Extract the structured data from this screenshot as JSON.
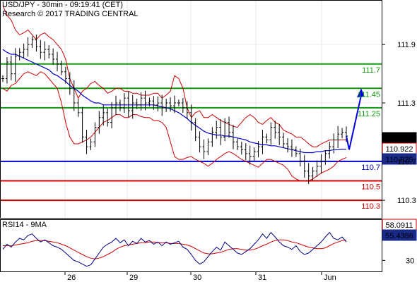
{
  "header": {
    "title": "USD/JPY - 30min - 09:19:41 (CET)",
    "subtitle": "Research © 2017 TRADING CENTRAL"
  },
  "rsi_panel": {
    "label": "RSI14 - 9MA"
  },
  "colors": {
    "resistance": "#119911",
    "pivot": "#0000cc",
    "support": "#cc0000",
    "candles": "#000000",
    "ma": "#0000cc",
    "bollinger": "#cc0000",
    "forecast_arrow": "#0000dd",
    "last_price_box": "#000000",
    "rsi_line": "#000080",
    "rsi_ma": "#cc0000"
  },
  "chart_data": [
    {
      "type": "line",
      "title": "USD/JPY - 30min - 09:19:41 (CET)",
      "y_ticks": [
        111.9,
        111.3,
        110.7,
        110.3
      ],
      "ylim": [
        110.12,
        112.35
      ],
      "x_ticks": [
        "26",
        "29",
        "30",
        "31",
        "Jun"
      ],
      "levels": [
        {
          "label": "111.7",
          "value": 111.7,
          "kind": "resistance"
        },
        {
          "label": "111.45",
          "value": 111.45,
          "kind": "resistance"
        },
        {
          "label": "111.25",
          "value": 111.25,
          "kind": "resistance"
        },
        {
          "label": "110.7",
          "value": 110.7,
          "kind": "pivot"
        },
        {
          "label": "110.5",
          "value": 110.5,
          "kind": "support"
        },
        {
          "label": "110.3",
          "value": 110.3,
          "kind": "support"
        }
      ],
      "price_boxes": [
        {
          "label": "110.957",
          "value": 110.957,
          "style": "last"
        },
        {
          "label": "110.922",
          "value": 110.922,
          "style": "bollinger"
        },
        {
          "label": "110.825",
          "value": 110.825,
          "style": "ma"
        }
      ],
      "series": [
        {
          "values": [
            111.55,
            111.72,
            111.6,
            111.78,
            111.82,
            111.85,
            111.9,
            111.95,
            111.88,
            111.82,
            111.85,
            111.8,
            111.75,
            111.7,
            111.62,
            111.55,
            111.45,
            111.3,
            111.2,
            110.95,
            110.85,
            110.9,
            111.05,
            111.15,
            111.2,
            111.1,
            111.25,
            111.3,
            111.25,
            111.35,
            111.22,
            111.3,
            111.28,
            111.35,
            111.3,
            111.32,
            111.28,
            111.3,
            111.25,
            111.3,
            111.27,
            111.3,
            111.3,
            111.25,
            111.2,
            111.1,
            110.95,
            110.85,
            110.8,
            110.9,
            111.0,
            111.05,
            110.95,
            111.1,
            111.0,
            110.9,
            110.85,
            110.82,
            110.78,
            110.75,
            110.8,
            110.85,
            110.95,
            110.92,
            111.05,
            111.0,
            110.95,
            110.88,
            110.85,
            110.82,
            110.78,
            110.7,
            110.6,
            110.55,
            110.6,
            110.65,
            110.7,
            110.78,
            110.85,
            110.92,
            110.98,
            111.0,
            110.96
          ]
        },
        {
          "values": [
            111.85,
            111.82,
            111.8,
            111.8,
            111.78,
            111.76,
            111.74,
            111.72,
            111.7,
            111.68,
            111.66,
            111.64,
            111.6,
            111.58,
            111.55,
            111.52,
            111.48,
            111.45,
            111.42,
            111.38,
            111.35,
            111.32,
            111.3,
            111.3,
            111.28,
            111.28,
            111.28,
            111.28,
            111.28,
            111.28,
            111.28,
            111.28,
            111.28,
            111.28,
            111.28,
            111.28,
            111.28,
            111.27,
            111.26,
            111.25,
            111.24,
            111.22,
            111.2,
            111.17,
            111.14,
            111.1,
            111.07,
            111.04,
            111.01,
            110.99,
            110.98,
            110.97,
            110.97,
            110.96,
            110.96,
            110.95,
            110.94,
            110.93,
            110.92,
            110.9,
            110.89,
            110.88,
            110.87,
            110.87,
            110.86,
            110.86,
            110.85,
            110.84,
            110.83,
            110.82,
            110.81,
            110.8,
            110.79,
            110.79,
            110.79,
            110.8,
            110.8,
            110.81,
            110.81,
            110.82,
            110.82,
            110.825,
            110.825
          ]
        },
        {
          "values": [
            112.3,
            112.2,
            112.15,
            112.05,
            112.0,
            112.02,
            112.05,
            112.0,
            111.95,
            112.0,
            112.02,
            111.98,
            111.95,
            111.9,
            111.85,
            111.75,
            111.55,
            111.45,
            111.35,
            111.42,
            111.45,
            111.5,
            111.52,
            111.48,
            111.45,
            111.4,
            111.42,
            111.45,
            111.45,
            111.42,
            111.42,
            111.4,
            111.4,
            111.38,
            111.38,
            111.38,
            111.4,
            111.4,
            111.35,
            111.38,
            111.42,
            111.58,
            111.55,
            111.45,
            111.25,
            111.15,
            111.2,
            111.22,
            111.15,
            111.15,
            111.18,
            111.15,
            111.12,
            111.1,
            111.08,
            111.06,
            111.05,
            111.1,
            111.15,
            111.18,
            111.15,
            111.1,
            111.08,
            111.12,
            111.15,
            111.1,
            111.08,
            111.02,
            111.0,
            110.98,
            110.95,
            110.95,
            110.92,
            110.88,
            110.85,
            110.85,
            110.88,
            110.9,
            110.92,
            110.92,
            110.92,
            110.922,
            110.922
          ]
        },
        {
          "values": [
            111.45,
            111.42,
            111.48,
            111.5,
            111.55,
            111.6,
            111.62,
            111.6,
            111.58,
            111.62,
            111.6,
            111.55,
            111.5,
            111.45,
            111.3,
            111.1,
            110.95,
            110.88,
            110.88,
            110.9,
            110.92,
            110.95,
            111.0,
            111.05,
            111.1,
            111.12,
            111.15,
            111.18,
            111.18,
            111.15,
            111.15,
            111.18,
            111.18,
            111.16,
            111.15,
            111.15,
            111.12,
            111.12,
            111.1,
            111.05,
            110.9,
            110.75,
            110.72,
            110.72,
            110.74,
            110.75,
            110.72,
            110.7,
            110.68,
            110.65,
            110.68,
            110.72,
            110.75,
            110.78,
            110.8,
            110.78,
            110.75,
            110.72,
            110.7,
            110.68,
            110.66,
            110.64,
            110.68,
            110.72,
            110.72,
            110.7,
            110.68,
            110.66,
            110.62,
            110.55,
            110.52,
            110.5,
            110.5,
            110.5,
            110.52,
            110.55,
            110.58,
            110.6,
            110.62,
            110.65,
            110.7,
            110.72,
            110.74
          ]
        }
      ],
      "forecast": {
        "from": 110.82,
        "to": 111.45
      }
    },
    {
      "type": "line",
      "title": "RSI14 - 9MA",
      "y_ticks": [
        30
      ],
      "ylim": [
        15,
        85
      ],
      "price_boxes": [
        {
          "label": "58.0911",
          "value": 58.0911,
          "style": "ma"
        },
        {
          "label": "55.4386",
          "value": 55.4386,
          "style": "rsi"
        }
      ],
      "series": [
        {
          "values": [
            45,
            52,
            48,
            55,
            60,
            58,
            64,
            66,
            60,
            55,
            58,
            54,
            50,
            48,
            45,
            40,
            35,
            30,
            28,
            25,
            22,
            24,
            32,
            40,
            48,
            52,
            55,
            60,
            54,
            58,
            50,
            56,
            53,
            60,
            55,
            57,
            52,
            55,
            50,
            55,
            52,
            54,
            56,
            48,
            45,
            38,
            30,
            25,
            28,
            35,
            42,
            48,
            44,
            55,
            50,
            45,
            40,
            38,
            42,
            46,
            52,
            58,
            66,
            60,
            68,
            62,
            55,
            50,
            48,
            45,
            50,
            42,
            38,
            40,
            45,
            50,
            55,
            62,
            68,
            60,
            58,
            62,
            55
          ]
        },
        {
          "values": [
            50,
            50,
            50,
            51,
            52,
            53,
            54,
            56,
            57,
            57,
            57,
            56,
            55,
            54,
            52,
            50,
            47,
            44,
            41,
            38,
            35,
            33,
            32,
            33,
            35,
            38,
            41,
            45,
            48,
            50,
            51,
            52,
            53,
            54,
            54,
            55,
            55,
            54,
            54,
            54,
            53,
            53,
            53,
            52,
            51,
            49,
            46,
            43,
            40,
            39,
            39,
            40,
            41,
            43,
            45,
            46,
            46,
            45,
            44,
            44,
            45,
            47,
            50,
            52,
            55,
            57,
            58,
            58,
            57,
            55,
            54,
            52,
            50,
            48,
            47,
            46,
            46,
            47,
            50,
            53,
            55,
            57,
            58
          ]
        }
      ]
    }
  ]
}
